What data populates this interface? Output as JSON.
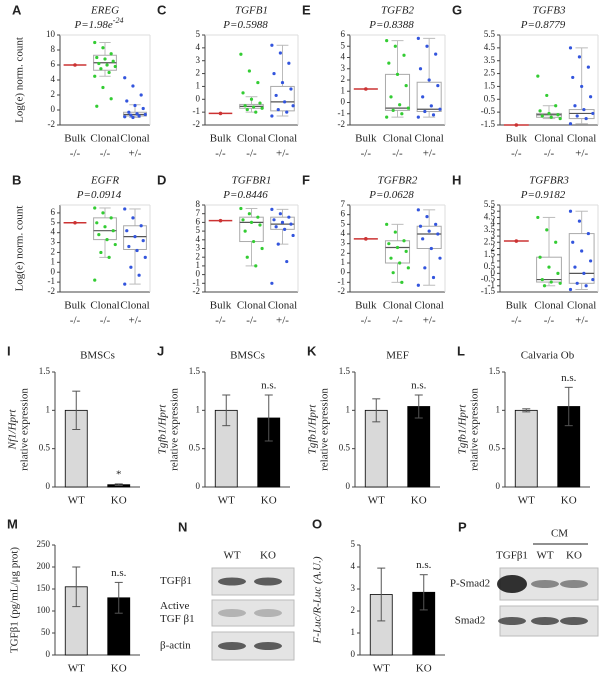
{
  "chart_data": [
    {
      "type": "box",
      "panel": "A",
      "gene": "EREG",
      "p_value": "P=1.98e",
      "p_exponent": "-24",
      "ylabel": "Log(e) norm. count",
      "categories": [
        "Bulk",
        "Clonal",
        "Clonal"
      ],
      "genotypes": [
        "-/-",
        "-/-",
        "+/-"
      ],
      "ylim": [
        -2,
        10
      ],
      "yticks": [
        -2,
        0,
        2,
        4,
        6,
        8,
        10
      ],
      "boxes": [
        {
          "color": "#cc3333",
          "median": 6
        },
        {
          "color": "#33cc33",
          "q1": 5.3,
          "median": 6.3,
          "q3": 7.3,
          "whisker_low": 4.5,
          "whisker_high": 9,
          "points": [
            9,
            8.3,
            7.5,
            7,
            6.8,
            6.5,
            6.2,
            6,
            5.8,
            5.5,
            5,
            4.5,
            3,
            1.5,
            0.5
          ]
        },
        {
          "color": "#3355dd",
          "q1": -0.8,
          "median": -0.6,
          "q3": -0.3,
          "whisker_low": -1,
          "whisker_high": 0.7,
          "points": [
            4.3,
            3.2,
            2,
            1.2,
            0.6,
            0.2,
            -0.3,
            -0.5,
            -0.6,
            -0.7,
            -0.8,
            -0.9,
            -1
          ]
        }
      ]
    },
    {
      "type": "box",
      "panel": "C",
      "gene": "TGFB1",
      "p_value": "P=0.5988",
      "categories": [
        "Bulk",
        "Clonal",
        "Clonal"
      ],
      "genotypes": [
        "-/-",
        "-/-",
        "+/-"
      ],
      "ylim": [
        -2,
        5
      ],
      "yticks": [
        -2,
        -1,
        0,
        1,
        2,
        3,
        4,
        5
      ],
      "boxes": [
        {
          "color": "#cc3333",
          "median": -1.1
        },
        {
          "color": "#33cc33",
          "q1": -0.7,
          "median": -0.55,
          "q3": -0.4,
          "whisker_low": -1,
          "whisker_high": 0.2,
          "points": [
            3.5,
            2.2,
            1.3,
            0.5,
            0,
            -0.3,
            -0.5,
            -0.6,
            -0.7,
            -0.8,
            -1
          ]
        },
        {
          "color": "#3355dd",
          "q1": -0.9,
          "median": -0.2,
          "q3": 1,
          "whisker_low": -1.3,
          "whisker_high": 4.2,
          "points": [
            4.2,
            3.6,
            2.8,
            2,
            1.3,
            0.8,
            0.3,
            -0.2,
            -0.5,
            -0.8,
            -1,
            -1.3
          ]
        }
      ]
    },
    {
      "type": "box",
      "panel": "E",
      "gene": "TGFB2",
      "p_value": "P=0.8388",
      "categories": [
        "Bulk",
        "Clonal",
        "Clonal"
      ],
      "genotypes": [
        "-/-",
        "-/-",
        "+/-"
      ],
      "ylim": [
        -2,
        6
      ],
      "yticks": [
        -2,
        -1,
        0,
        1,
        2,
        3,
        4,
        5,
        6
      ],
      "boxes": [
        {
          "color": "#cc3333",
          "median": 1.2
        },
        {
          "color": "#33cc33",
          "q1": -0.7,
          "median": -0.5,
          "q3": 2.5,
          "whisker_low": -1.3,
          "whisker_high": 5.5,
          "points": [
            5.5,
            5,
            4.2,
            3.5,
            2.5,
            1.5,
            0.5,
            -0.2,
            -0.5,
            -0.7,
            -1,
            -1.3
          ]
        },
        {
          "color": "#3355dd",
          "q1": -0.8,
          "median": -0.6,
          "q3": 1.8,
          "whisker_low": -1.3,
          "whisker_high": 5.7,
          "points": [
            5.7,
            5,
            4.3,
            3,
            2,
            1.5,
            0.5,
            -0.3,
            -0.6,
            -0.8,
            -1.1,
            -1.3
          ]
        }
      ]
    },
    {
      "type": "box",
      "panel": "G",
      "gene": "TGFB3",
      "p_value": "P=0.8779",
      "categories": [
        "Bulk",
        "Clonal",
        "Clonal"
      ],
      "genotypes": [
        "-/-",
        "-/-",
        "+/-"
      ],
      "ylim": [
        -1.5,
        5.5
      ],
      "yticks": [
        -1.5,
        -0.5,
        0.5,
        1.5,
        2.5,
        3.5,
        4.5,
        5.5
      ],
      "boxes": [
        {
          "color": "#cc3333",
          "median": -1.5
        },
        {
          "color": "#33cc33",
          "q1": -0.9,
          "median": -0.7,
          "q3": -0.6,
          "whisker_low": -1,
          "whisker_high": 0,
          "points": [
            2.3,
            0.8,
            0,
            -0.4,
            -0.6,
            -0.7,
            -0.8,
            -0.9,
            -1
          ]
        },
        {
          "color": "#3355dd",
          "q1": -1,
          "median": -0.6,
          "q3": -0.3,
          "whisker_low": -1.4,
          "whisker_high": 4.5,
          "points": [
            4.5,
            3.8,
            3,
            2.2,
            1.5,
            0.7,
            0,
            -0.3,
            -0.6,
            -0.8,
            -1,
            -1.4
          ]
        }
      ]
    },
    {
      "type": "box",
      "panel": "B",
      "gene": "EGFR",
      "p_value": "P=0.0914",
      "ylabel": "Log(e) norm. count",
      "categories": [
        "Bulk",
        "Clonal",
        "Clonal"
      ],
      "genotypes": [
        "-/-",
        "-/-",
        "+/-"
      ],
      "ylim": [
        -2,
        6.8
      ],
      "yticks": [
        -2,
        -1,
        0,
        1,
        2,
        3,
        4,
        5,
        6
      ],
      "boxes": [
        {
          "color": "#cc3333",
          "median": 5
        },
        {
          "color": "#33cc33",
          "q1": 3.3,
          "median": 4.2,
          "q3": 5.5,
          "whisker_low": 1.5,
          "whisker_high": 6.5,
          "points": [
            6.5,
            6,
            5.5,
            5,
            4.6,
            4.2,
            3.8,
            3.3,
            2.8,
            2,
            1.5,
            -0.8
          ]
        },
        {
          "color": "#3355dd",
          "q1": 2.3,
          "median": 3.6,
          "q3": 4.7,
          "whisker_low": -1.2,
          "whisker_high": 6.4,
          "points": [
            6.4,
            5.5,
            4.7,
            4.2,
            3.6,
            3.2,
            2.6,
            2.2,
            1.5,
            0.5,
            -0.3,
            -1.2
          ]
        }
      ]
    },
    {
      "type": "box",
      "panel": "D",
      "gene": "TGFBR1",
      "p_value": "P=0.8446",
      "categories": [
        "Bulk",
        "Clonal",
        "Clonal"
      ],
      "genotypes": [
        "-/-",
        "-/-",
        "+/-"
      ],
      "ylim": [
        -2,
        8
      ],
      "yticks": [
        -2,
        -1,
        0,
        1,
        2,
        3,
        4,
        5,
        6,
        7,
        8
      ],
      "boxes": [
        {
          "color": "#cc3333",
          "median": 6.2
        },
        {
          "color": "#33cc33",
          "q1": 3.8,
          "median": 6,
          "q3": 6.6,
          "whisker_low": 1,
          "whisker_high": 7.6,
          "points": [
            7.6,
            7,
            6.6,
            6.3,
            6,
            5.7,
            5,
            3.8,
            3,
            2,
            1
          ]
        },
        {
          "color": "#3355dd",
          "q1": 5.2,
          "median": 5.8,
          "q3": 6.6,
          "whisker_low": 3.5,
          "whisker_high": 7.5,
          "points": [
            7.5,
            7,
            6.6,
            6.3,
            6,
            5.8,
            5.5,
            5.2,
            4.5,
            3.5,
            1.5,
            -1
          ]
        }
      ]
    },
    {
      "type": "box",
      "panel": "F",
      "gene": "TGFBR2",
      "p_value": "P=0.0628",
      "categories": [
        "Bulk",
        "Clonal",
        "Clonal"
      ],
      "genotypes": [
        "-/-",
        "-/-",
        "+/-"
      ],
      "ylim": [
        -2,
        7
      ],
      "yticks": [
        -2,
        -1,
        0,
        1,
        2,
        3,
        4,
        5,
        6,
        7
      ],
      "boxes": [
        {
          "color": "#cc3333",
          "median": 3.5
        },
        {
          "color": "#33cc33",
          "q1": 1,
          "median": 2.6,
          "q3": 3.3,
          "whisker_low": -1,
          "whisker_high": 5,
          "points": [
            5,
            4.2,
            3.3,
            3,
            2.6,
            2.2,
            1.5,
            1,
            0.5,
            0,
            -1
          ]
        },
        {
          "color": "#3355dd",
          "q1": 2.5,
          "median": 4,
          "q3": 4.8,
          "whisker_low": -1.3,
          "whisker_high": 6.5,
          "points": [
            6.5,
            5.8,
            5,
            4.8,
            4.3,
            4,
            3.5,
            2.5,
            1.5,
            0.5,
            -0.5,
            -1.3
          ]
        }
      ]
    },
    {
      "type": "box",
      "panel": "H",
      "gene": "TGFBR3",
      "p_value": "P=0.9182",
      "categories": [
        "Bulk",
        "Clonal",
        "Clonal"
      ],
      "genotypes": [
        "-/-",
        "-/-",
        "+/-"
      ],
      "ylim": [
        -1.5,
        5.5
      ],
      "yticks": [
        -1.5,
        -1,
        -0.5,
        0,
        0.5,
        1,
        1.5,
        2,
        2.5,
        3,
        3.5,
        4,
        4.5,
        5,
        5.5
      ],
      "boxes": [
        {
          "color": "#cc3333",
          "median": 2.6
        },
        {
          "color": "#33cc33",
          "q1": -0.7,
          "median": -0.5,
          "q3": 1.3,
          "whisker_low": -1,
          "whisker_high": 4.5,
          "points": [
            4.5,
            3.5,
            2.5,
            1.3,
            0.5,
            0,
            -0.5,
            -0.7,
            -0.8,
            -1
          ]
        },
        {
          "color": "#3355dd",
          "q1": -0.8,
          "median": 0,
          "q3": 3.2,
          "whisker_low": -1.3,
          "whisker_high": 5,
          "points": [
            5,
            4.2,
            3.2,
            2.5,
            1.8,
            1,
            0.5,
            0,
            -0.5,
            -0.8,
            -1,
            -1.3
          ]
        }
      ]
    },
    {
      "type": "bar",
      "panel": "I",
      "title": "BMSCs",
      "ylabel_italic": "Nf1/Hprt",
      "ylabel": "relative expression",
      "categories": [
        "WT",
        "KO"
      ],
      "values": [
        1,
        0.03
      ],
      "errors": [
        0.25,
        0.01
      ],
      "colors": [
        "#d9d9d9",
        "#000000"
      ],
      "annotation": "*",
      "ylim": [
        0,
        1.5
      ],
      "yticks": [
        0,
        0.5,
        1,
        1.5
      ]
    },
    {
      "type": "bar",
      "panel": "J",
      "title": "BMSCs",
      "ylabel_italic": "Tgfb1/Hprt",
      "ylabel": "relative expression",
      "categories": [
        "WT",
        "KO"
      ],
      "values": [
        1,
        0.9
      ],
      "errors": [
        0.2,
        0.3
      ],
      "colors": [
        "#d9d9d9",
        "#000000"
      ],
      "annotation": "n.s.",
      "ylim": [
        0,
        1.5
      ],
      "yticks": [
        0,
        0.5,
        1,
        1.5
      ]
    },
    {
      "type": "bar",
      "panel": "K",
      "title": "MEF",
      "ylabel_italic": "Tgfb1/Hprt",
      "ylabel": "relative expression",
      "categories": [
        "WT",
        "KO"
      ],
      "values": [
        1,
        1.05
      ],
      "errors": [
        0.15,
        0.15
      ],
      "colors": [
        "#d9d9d9",
        "#000000"
      ],
      "annotation": "n.s.",
      "ylim": [
        0,
        1.5
      ],
      "yticks": [
        0,
        0.5,
        1,
        1.5
      ]
    },
    {
      "type": "bar",
      "panel": "L",
      "title": "Calvaria Ob",
      "ylabel_italic": "Tgfb1/Hprt",
      "ylabel": "relative expression",
      "categories": [
        "WT",
        "KO"
      ],
      "values": [
        1,
        1.05
      ],
      "errors": [
        0.02,
        0.25
      ],
      "colors": [
        "#d9d9d9",
        "#000000"
      ],
      "annotation": "n.s.",
      "ylim": [
        0,
        1.5
      ],
      "yticks": [
        0,
        0.5,
        1,
        1.5
      ]
    },
    {
      "type": "bar",
      "panel": "M",
      "ylabel": "TGFβ1 (pg/mL/μg prot)",
      "categories": [
        "WT",
        "KO"
      ],
      "values": [
        155,
        130
      ],
      "errors": [
        45,
        35
      ],
      "colors": [
        "#d9d9d9",
        "#000000"
      ],
      "annotation": "n.s.",
      "ylim": [
        0,
        250
      ],
      "yticks": [
        0,
        50,
        100,
        150,
        200,
        250
      ]
    },
    {
      "type": "bar",
      "panel": "O",
      "ylabel_italic": "F-Luc/R-Luc (A.U.)",
      "categories": [
        "WT",
        "KO"
      ],
      "values": [
        2.75,
        2.85
      ],
      "errors": [
        1.2,
        0.8
      ],
      "colors": [
        "#d9d9d9",
        "#000000"
      ],
      "annotation": "n.s.",
      "ylim": [
        0,
        5
      ],
      "yticks": [
        0,
        1,
        2,
        3,
        4,
        5
      ]
    }
  ],
  "blots": [
    {
      "panel": "N",
      "columns": [
        "WT",
        "KO"
      ],
      "rows": [
        [
          "TGFβ1"
        ],
        [
          "Active",
          "TGF β1"
        ],
        [
          "β-actin"
        ]
      ]
    },
    {
      "panel": "P",
      "columns": [
        "TGFβ1",
        "WT",
        "KO"
      ],
      "group_label": "CM",
      "rows": [
        [
          "P-Smad2"
        ],
        [
          "Smad2"
        ]
      ]
    }
  ]
}
